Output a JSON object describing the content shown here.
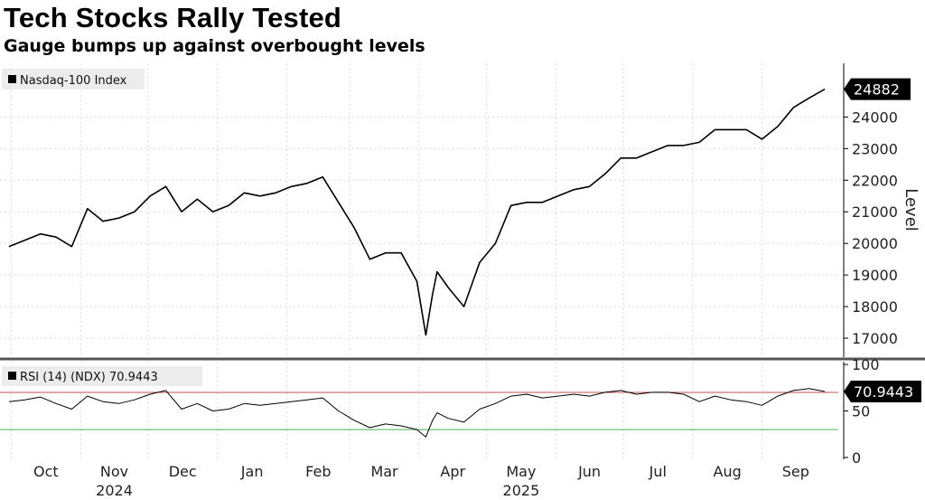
{
  "title": "Tech Stocks Rally Tested",
  "subtitle": "Gauge bumps up against overbought levels",
  "chart_data": [
    {
      "type": "line",
      "legend": "Nasdaq-100 Index",
      "ylabel": "Level",
      "ylim": [
        16400,
        25700
      ],
      "yticks": [
        17000,
        18000,
        19000,
        20000,
        21000,
        22000,
        23000,
        24000
      ],
      "last_value": "24882",
      "grid": true,
      "series": [
        {
          "name": "Nasdaq-100 Index",
          "x": [
            "2024-09-30",
            "2024-10-07",
            "2024-10-14",
            "2024-10-21",
            "2024-10-28",
            "2024-11-04",
            "2024-11-11",
            "2024-11-18",
            "2024-11-25",
            "2024-12-02",
            "2024-12-09",
            "2024-12-16",
            "2024-12-23",
            "2024-12-30",
            "2025-01-06",
            "2025-01-13",
            "2025-01-20",
            "2025-01-27",
            "2025-02-03",
            "2025-02-10",
            "2025-02-17",
            "2025-02-24",
            "2025-03-03",
            "2025-03-10",
            "2025-03-17",
            "2025-03-24",
            "2025-03-31",
            "2025-04-04",
            "2025-04-07",
            "2025-04-09",
            "2025-04-14",
            "2025-04-21",
            "2025-04-28",
            "2025-05-05",
            "2025-05-12",
            "2025-05-19",
            "2025-05-26",
            "2025-06-02",
            "2025-06-09",
            "2025-06-16",
            "2025-06-23",
            "2025-06-30",
            "2025-07-07",
            "2025-07-14",
            "2025-07-21",
            "2025-07-28",
            "2025-08-04",
            "2025-08-11",
            "2025-08-18",
            "2025-08-25",
            "2025-09-01",
            "2025-09-08",
            "2025-09-15",
            "2025-09-22",
            "2025-09-29"
          ],
          "values": [
            19900,
            20100,
            20300,
            20200,
            19900,
            21100,
            20700,
            20800,
            21000,
            21500,
            21800,
            21000,
            21400,
            21000,
            21200,
            21600,
            21500,
            21600,
            21800,
            21900,
            22100,
            21300,
            20500,
            19500,
            19700,
            19700,
            18800,
            17100,
            18400,
            19100,
            18600,
            18000,
            19400,
            20000,
            21200,
            21300,
            21300,
            21500,
            21700,
            21800,
            22200,
            22700,
            22700,
            22900,
            23100,
            23100,
            23200,
            23600,
            23600,
            23600,
            23300,
            23700,
            24300,
            24600,
            24882
          ]
        }
      ]
    },
    {
      "type": "line",
      "legend": "RSI (14) (NDX) 70.9443",
      "ylim": [
        -2,
        103
      ],
      "yticks": [
        0,
        50,
        100
      ],
      "last_value": "70.9443",
      "reference_lines": [
        {
          "value": 70,
          "color": "#c0504d"
        },
        {
          "value": 30,
          "color": "#4caf50"
        }
      ],
      "series": [
        {
          "name": "RSI (14) (NDX)",
          "x": [
            "2024-09-30",
            "2024-10-07",
            "2024-10-14",
            "2024-10-21",
            "2024-10-28",
            "2024-11-04",
            "2024-11-11",
            "2024-11-18",
            "2024-11-25",
            "2024-12-02",
            "2024-12-09",
            "2024-12-16",
            "2024-12-23",
            "2024-12-30",
            "2025-01-06",
            "2025-01-13",
            "2025-01-20",
            "2025-01-27",
            "2025-02-03",
            "2025-02-10",
            "2025-02-17",
            "2025-02-24",
            "2025-03-03",
            "2025-03-10",
            "2025-03-17",
            "2025-03-24",
            "2025-03-31",
            "2025-04-04",
            "2025-04-07",
            "2025-04-09",
            "2025-04-14",
            "2025-04-21",
            "2025-04-28",
            "2025-05-05",
            "2025-05-12",
            "2025-05-19",
            "2025-05-26",
            "2025-06-02",
            "2025-06-09",
            "2025-06-16",
            "2025-06-23",
            "2025-06-30",
            "2025-07-07",
            "2025-07-14",
            "2025-07-21",
            "2025-07-28",
            "2025-08-04",
            "2025-08-11",
            "2025-08-18",
            "2025-08-25",
            "2025-09-01",
            "2025-09-08",
            "2025-09-15",
            "2025-09-22",
            "2025-09-29"
          ],
          "values": [
            60,
            62,
            65,
            58,
            52,
            66,
            60,
            58,
            62,
            68,
            72,
            52,
            58,
            50,
            52,
            58,
            56,
            58,
            60,
            62,
            64,
            50,
            40,
            32,
            36,
            34,
            30,
            22,
            40,
            48,
            42,
            38,
            52,
            58,
            66,
            68,
            64,
            66,
            68,
            66,
            70,
            72,
            68,
            70,
            70,
            68,
            60,
            66,
            62,
            60,
            56,
            66,
            72,
            74,
            70.9
          ]
        }
      ]
    }
  ],
  "x_axis": {
    "months": [
      "Oct",
      "Nov",
      "Dec",
      "Jan",
      "Feb",
      "Mar",
      "Apr",
      "May",
      "Jun",
      "Jul",
      "Aug",
      "Sep"
    ],
    "years": [
      {
        "label": "2024",
        "month": "Nov"
      },
      {
        "label": "2025",
        "month": "May"
      }
    ]
  },
  "colors": {
    "line": "#000000",
    "grid": "#d9d9d9",
    "rsi_upper": "#c0504d",
    "rsi_lower": "#4caf50",
    "panel_sep": "#555555"
  }
}
